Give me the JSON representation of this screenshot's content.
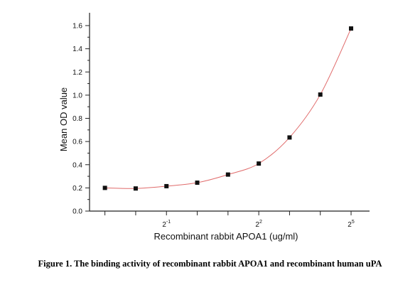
{
  "chart_data": {
    "type": "scatter",
    "xlabel": "Recombinant rabbit APOA1 (ug/ml)",
    "ylabel": "Mean OD value",
    "x_scale": "log2",
    "xlim": [
      0.0884,
      48.5
    ],
    "ylim": [
      0.0,
      1.6
    ],
    "y_ticks": [
      "0.0",
      "0.2",
      "0.4",
      "0.6",
      "0.8",
      "1.0",
      "1.2",
      "1.4",
      "1.6"
    ],
    "x_tick_labels": [
      {
        "base": "2",
        "exp": "-1",
        "value": 0.5
      },
      {
        "base": "2",
        "exp": "2",
        "value": 4
      },
      {
        "base": "2",
        "exp": "5",
        "value": 32
      }
    ],
    "marker": "square",
    "marker_color": "#111111",
    "fit_line_color": "#e06a6a",
    "grid": false,
    "legend": "none",
    "series": [
      {
        "x": [
          0.125,
          0.25,
          0.5,
          1,
          2,
          4,
          8,
          16,
          32
        ],
        "values": [
          0.2,
          0.195,
          0.215,
          0.245,
          0.315,
          0.41,
          0.635,
          1.005,
          1.575
        ]
      }
    ]
  },
  "caption": "Figure 1. The binding activity of recombinant rabbit APOA1 and recombinant human uPA"
}
